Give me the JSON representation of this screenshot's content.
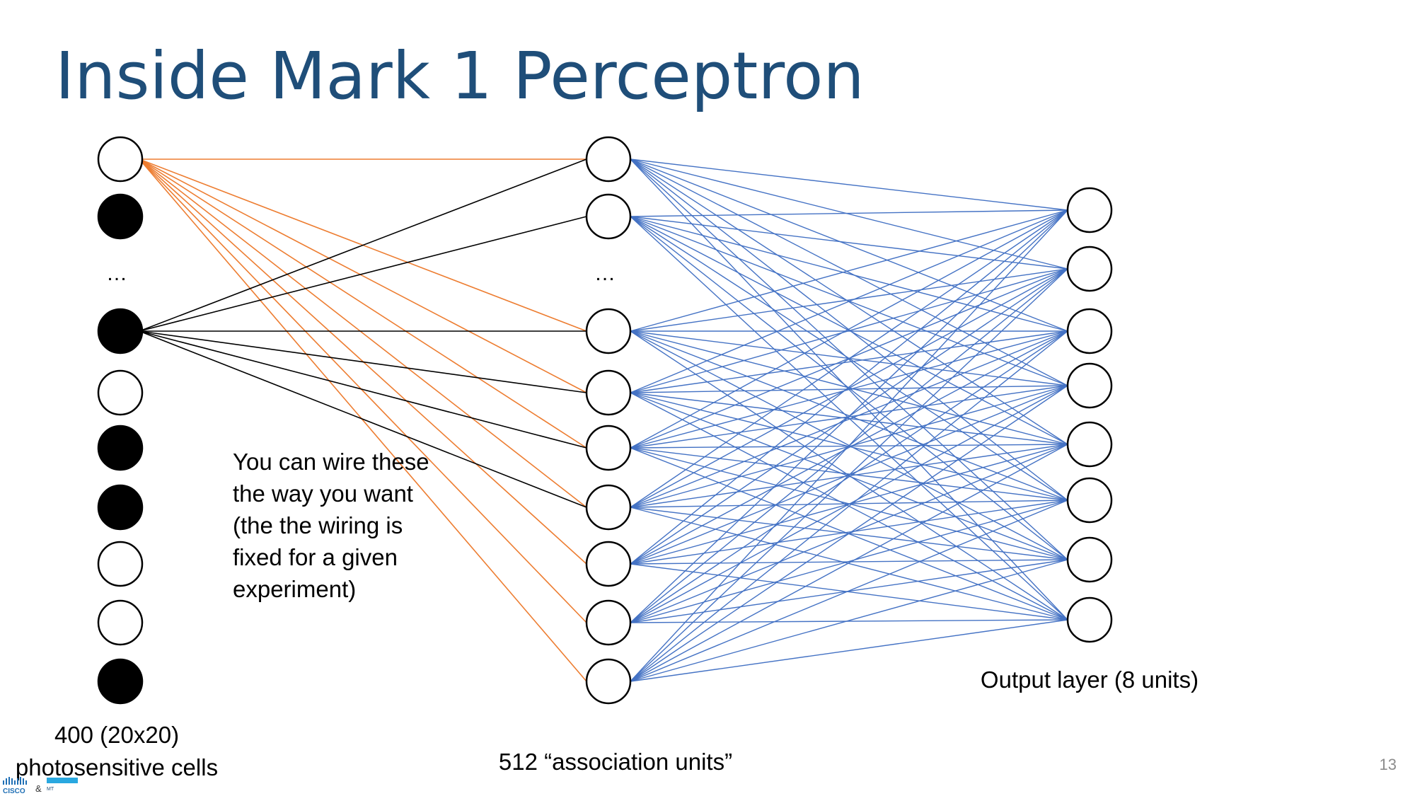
{
  "slide": {
    "title": "Inside Mark 1 Perceptron",
    "page_number": "13"
  },
  "diagram": {
    "input_layer": {
      "label_lines": [
        "400 (20x20)",
        "photosensitive cells"
      ],
      "ellipsis": "…",
      "cells_filled": [
        false,
        true,
        true,
        false,
        true,
        true,
        false,
        false,
        true
      ]
    },
    "association_layer": {
      "label": "512 “association units”",
      "ellipsis": "…",
      "unit_count_shown": 9
    },
    "output_layer": {
      "label": "Output layer (8 units)",
      "unit_count_shown": 8
    },
    "annotation_lines": [
      "You can wire these",
      "the way you want",
      "(the the wiring is",
      "fixed for a given",
      "experiment)"
    ],
    "colors": {
      "title": "#1f4e79",
      "input_to_assoc_highlight": "#ed7d31",
      "input_to_assoc_default": "#000000",
      "assoc_to_output": "#4472c4"
    }
  },
  "logo": {
    "text": "CISCO & MT"
  }
}
